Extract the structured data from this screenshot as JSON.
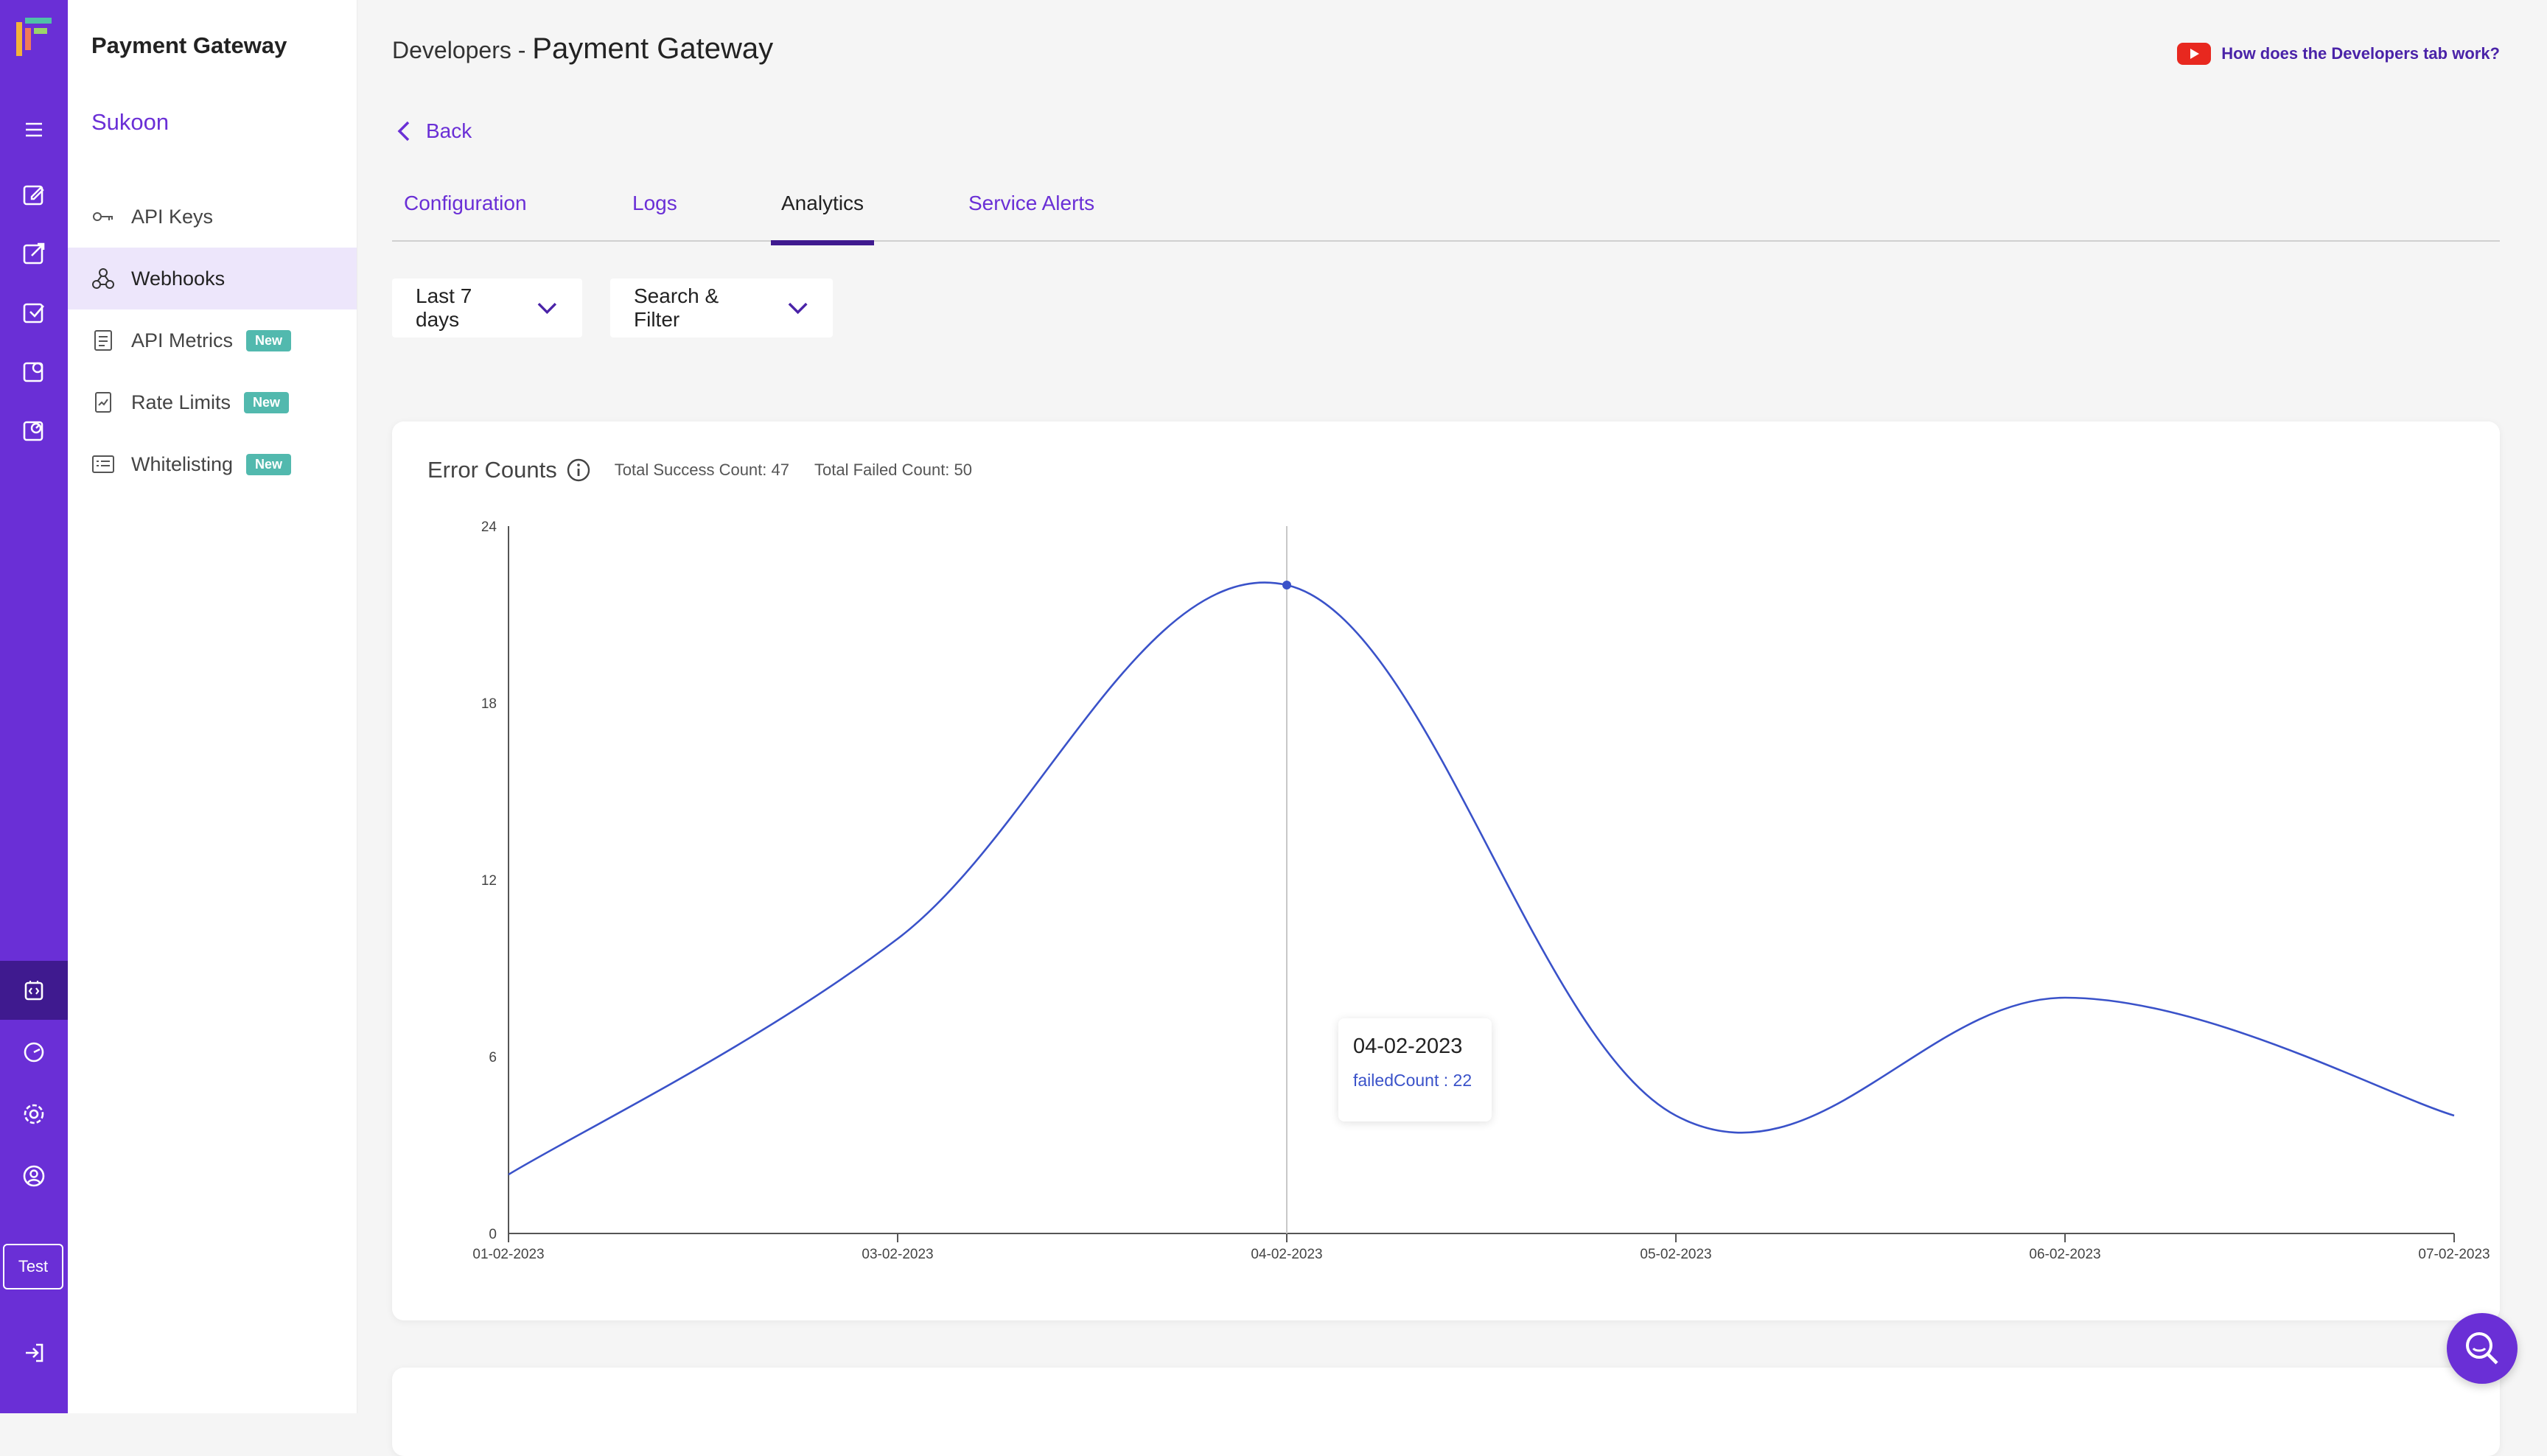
{
  "sidebar": {
    "app_title": "Payment Gateway",
    "org_name": "Sukoon",
    "items": [
      {
        "label": "API Keys",
        "icon": "key-icon",
        "badge": ""
      },
      {
        "label": "Webhooks",
        "icon": "webhook-icon",
        "badge": ""
      },
      {
        "label": "API Metrics",
        "icon": "document-icon",
        "badge": "New"
      },
      {
        "label": "Rate Limits",
        "icon": "rate-chart-icon",
        "badge": "New"
      },
      {
        "label": "Whitelisting",
        "icon": "list-icon",
        "badge": "New"
      }
    ]
  },
  "rail": {
    "env_label": "Test"
  },
  "header": {
    "crumb_prefix": "Developers - ",
    "crumb_title": "Payment Gateway",
    "help_link": "How does the Developers tab work?",
    "back_label": "Back"
  },
  "tabs": [
    {
      "label": "Configuration"
    },
    {
      "label": "Logs"
    },
    {
      "label": "Analytics"
    },
    {
      "label": "Service Alerts"
    }
  ],
  "filters": {
    "range_label": "Last 7 days",
    "search_label": "Search & Filter"
  },
  "card": {
    "title": "Error Counts",
    "success_stat": "Total Success Count: 47",
    "failed_stat": "Total Failed Count: 50"
  },
  "tooltip": {
    "date": "04-02-2023",
    "value_text": "failedCount : 22"
  },
  "colors": {
    "brand": "#6a2fd6",
    "line": "#3a52c9",
    "badge": "#52b9ae"
  },
  "chart_data": {
    "type": "line",
    "x": [
      "01-02-2023",
      "03-02-2023",
      "04-02-2023",
      "05-02-2023",
      "06-02-2023",
      "07-02-2023"
    ],
    "series": [
      {
        "name": "failedCount",
        "values": [
          2,
          10,
          22,
          4,
          8,
          4
        ]
      }
    ],
    "yticks": [
      0,
      6,
      12,
      18,
      24
    ],
    "ylim": [
      0,
      24
    ],
    "highlight_index": 2,
    "grid": false
  }
}
